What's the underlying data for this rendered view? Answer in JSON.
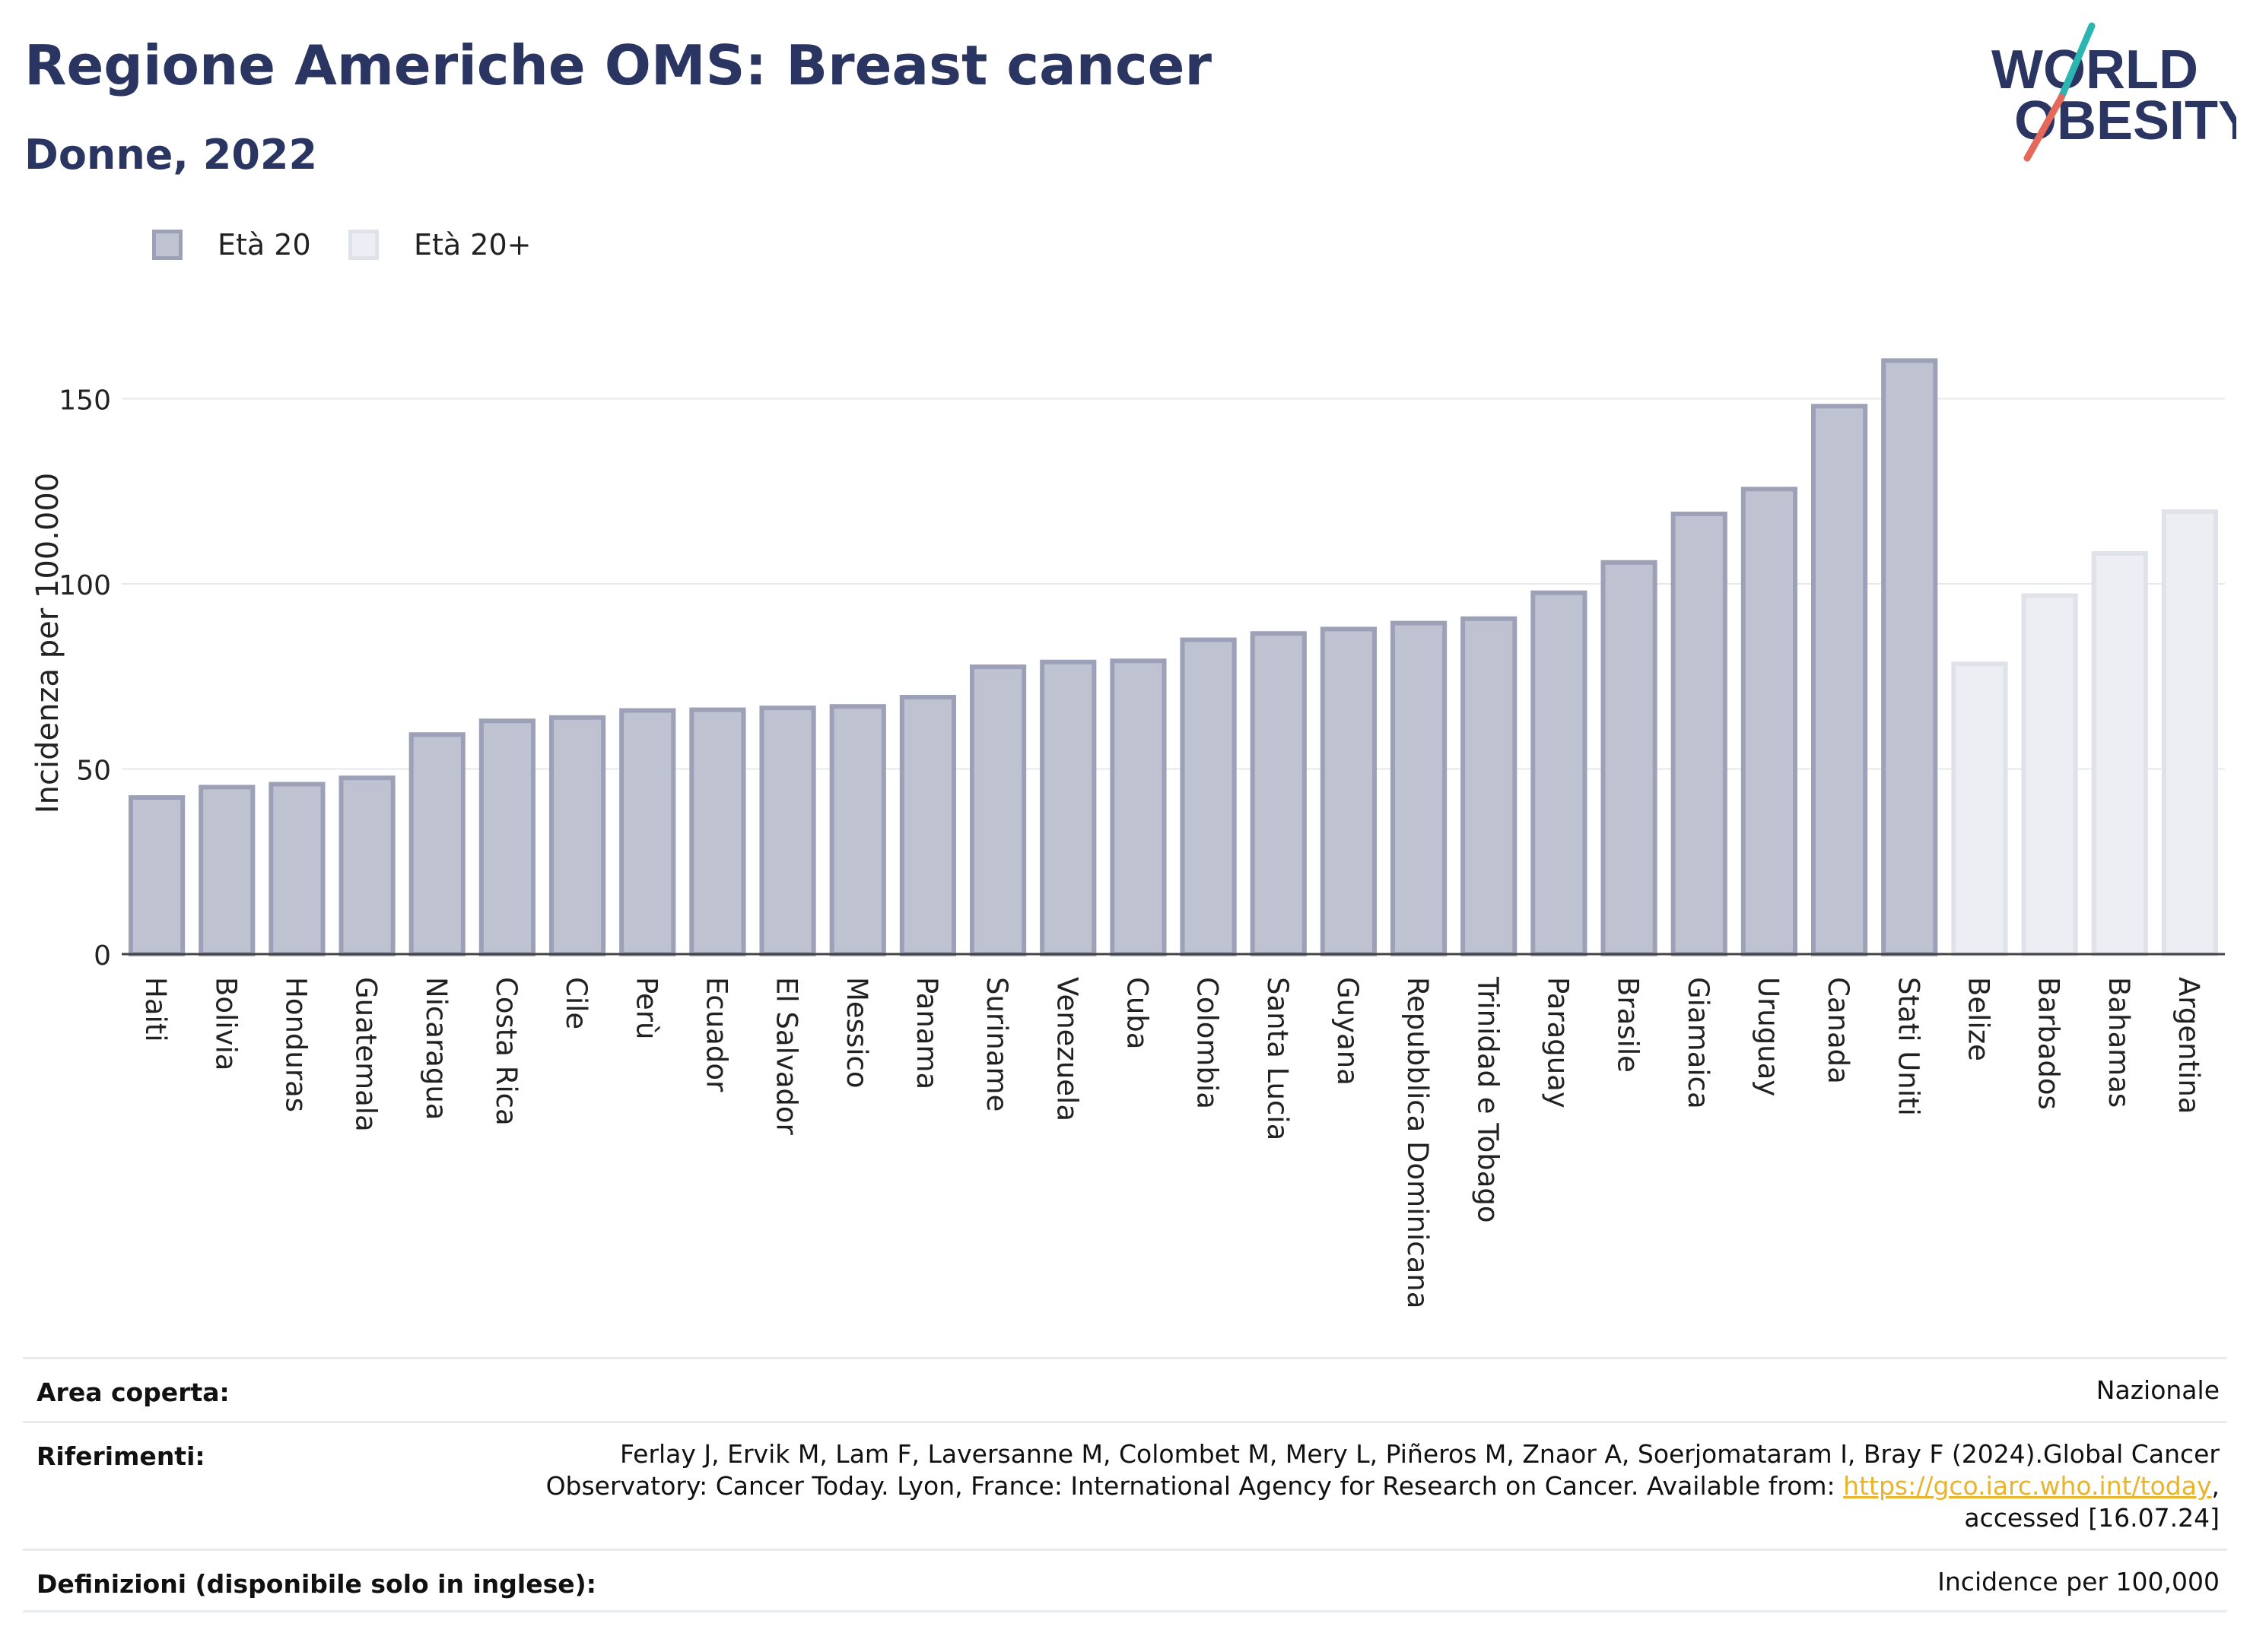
{
  "header": {
    "title": "Regione Americhe OMS: Breast cancer",
    "subtitle": "Donne, 2022"
  },
  "logo": {
    "line1": "WORLD",
    "line2": "OBESITY",
    "colors": {
      "text": "#2b3561",
      "slash_teal": "#2bb5b0",
      "slash_red": "#e5695b"
    }
  },
  "legend": [
    {
      "label": "Età 20",
      "fill": "#bfc2d0",
      "stroke": "#9da1b8"
    },
    {
      "label": "Età 20+",
      "fill": "#edeef3",
      "stroke": "#e0e2ea"
    }
  ],
  "chart_data": {
    "type": "bar",
    "title": "Regione Americhe OMS: Breast cancer",
    "subtitle": "Donne, 2022",
    "ylabel": "Incidenza per 100.000",
    "xlabel": "",
    "ylim": [
      0,
      170
    ],
    "yticks": [
      0,
      50,
      100,
      150
    ],
    "grid": true,
    "legend_position": "top-left",
    "categories": [
      "Haiti",
      "Bolivia",
      "Honduras",
      "Guatemala",
      "Nicaragua",
      "Costa Rica",
      "Cile",
      "Perù",
      "Ecuador",
      "El Salvador",
      "Messico",
      "Panama",
      "Suriname",
      "Venezuela",
      "Cuba",
      "Colombia",
      "Santa Lucia",
      "Guyana",
      "Repubblica Dominicana",
      "Trinidad e Tobago",
      "Paraguay",
      "Brasile",
      "Giamaica",
      "Uruguay",
      "Canada",
      "Stati Uniti",
      "Belize",
      "Barbados",
      "Bahamas",
      "Argentina"
    ],
    "values": [
      42.3,
      45.1,
      45.9,
      47.6,
      59.3,
      63.0,
      63.9,
      65.8,
      66.0,
      66.5,
      66.9,
      69.4,
      77.6,
      78.9,
      79.2,
      84.9,
      86.6,
      87.8,
      89.4,
      90.6,
      97.6,
      105.8,
      118.9,
      125.6,
      148.0,
      160.3,
      78.4,
      96.8,
      108.2,
      119.5
    ],
    "series_index": [
      0,
      0,
      0,
      0,
      0,
      0,
      0,
      0,
      0,
      0,
      0,
      0,
      0,
      0,
      0,
      0,
      0,
      0,
      0,
      0,
      0,
      0,
      0,
      0,
      0,
      0,
      1,
      1,
      1,
      1
    ],
    "series": [
      {
        "name": "Età 20"
      },
      {
        "name": "Età 20+"
      }
    ]
  },
  "footer": {
    "rows": [
      {
        "label": "Area coperta:",
        "value": "Nazionale"
      },
      {
        "label": "Riferimenti:",
        "value_lines": [
          "Ferlay J, Ervik M, Lam F, Laversanne M, Colombet M, Mery L, Piñeros M, Znaor A, Soerjomataram I, Bray F (2024).Global Cancer",
          "Observatory: Cancer Today. Lyon, France: International Agency for Research on Cancer. Available from: "
        ],
        "link": "https://gco.iarc.who.int/today",
        "after_link": ",",
        "last_line": "accessed [16.07.24]"
      },
      {
        "label": "Definizioni (disponibile solo in inglese):",
        "value": "Incidence per 100,000"
      }
    ]
  }
}
